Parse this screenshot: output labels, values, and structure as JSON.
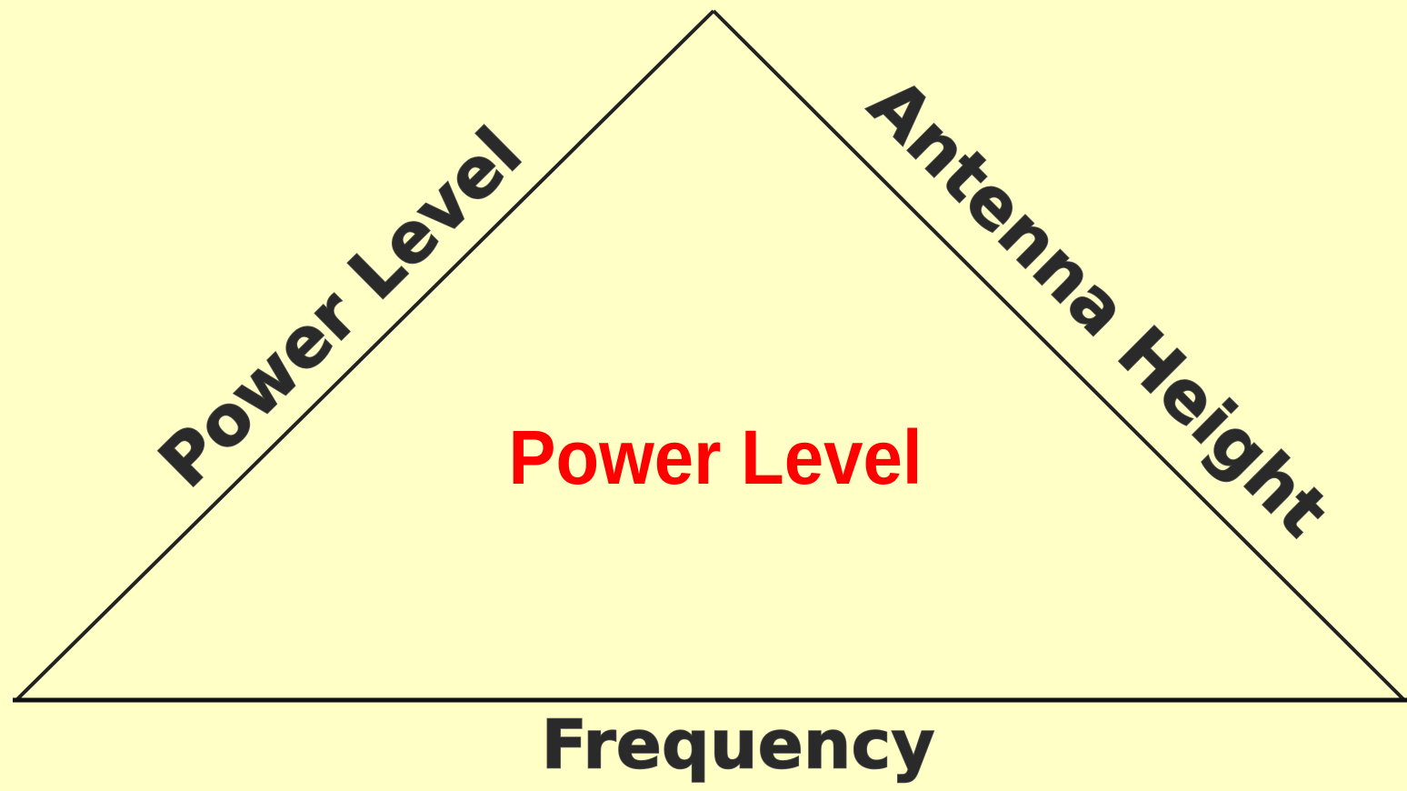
{
  "diagram": {
    "sides": {
      "left": "Power Level",
      "right": "Antenna Height",
      "base": "Frequency"
    },
    "center": "Power Level"
  }
}
